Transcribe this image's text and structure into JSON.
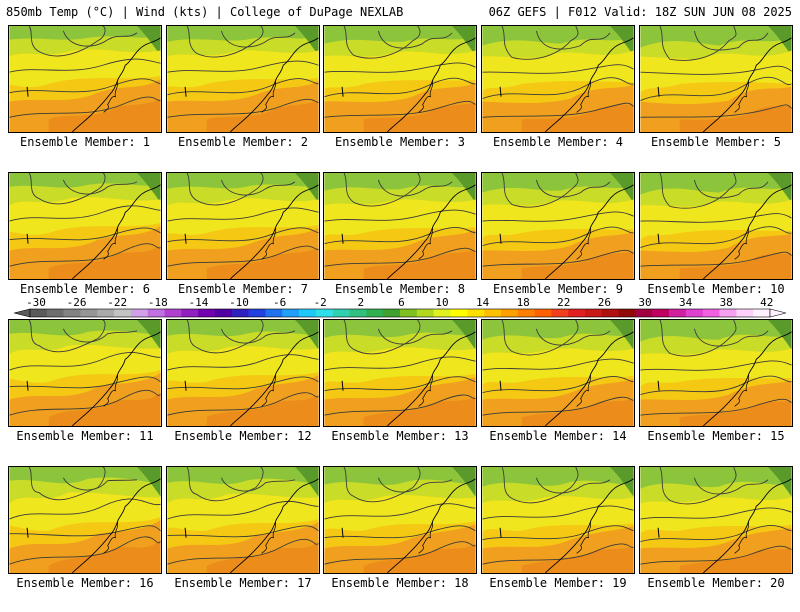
{
  "header": {
    "left_title": "850mb Temp (°C) | Wind (kts) | College of DuPage NEXLAB",
    "right_title": "06Z GEFS | F012 Valid: 18Z SUN JUN 08 2025"
  },
  "panel_label_prefix": "Ensemble Member:",
  "members": [
    1,
    2,
    3,
    4,
    5,
    6,
    7,
    8,
    9,
    10,
    11,
    12,
    13,
    14,
    15,
    16,
    17,
    18,
    19,
    20
  ],
  "panel_labels": [
    "Ensemble Member: 1",
    "Ensemble Member: 2",
    "Ensemble Member: 3",
    "Ensemble Member: 4",
    "Ensemble Member: 5",
    "Ensemble Member: 6",
    "Ensemble Member: 7",
    "Ensemble Member: 8",
    "Ensemble Member: 9",
    "Ensemble Member: 10",
    "Ensemble Member: 11",
    "Ensemble Member: 12",
    "Ensemble Member: 13",
    "Ensemble Member: 14",
    "Ensemble Member: 15",
    "Ensemble Member: 16",
    "Ensemble Member: 17",
    "Ensemble Member: 18",
    "Ensemble Member: 19",
    "Ensemble Member: 20"
  ],
  "colorbar": {
    "tick_labels": [
      "-30",
      "-26",
      "-22",
      "-18",
      "-14",
      "-10",
      "-6",
      "-2",
      "2",
      "6",
      "10",
      "14",
      "18",
      "22",
      "26",
      "30",
      "34",
      "38",
      "42"
    ],
    "colors": [
      "#5a5a5a",
      "#6e6e6e",
      "#828282",
      "#969696",
      "#aaaaaa",
      "#c3c3c3",
      "#d0a0e8",
      "#c070e0",
      "#b040d0",
      "#9020c0",
      "#7000b0",
      "#5000a0",
      "#3020c0",
      "#2040e0",
      "#2070f0",
      "#20a0f8",
      "#20c8f8",
      "#30e0e8",
      "#30d0b0",
      "#30c080",
      "#30b050",
      "#40a030",
      "#80c020",
      "#b0d820",
      "#e0f020",
      "#ffff00",
      "#ffe000",
      "#ffc000",
      "#ffa000",
      "#ff8000",
      "#ff6000",
      "#f04020",
      "#e02020",
      "#c81818",
      "#b01010",
      "#900808",
      "#a00040",
      "#c00060",
      "#d020a0",
      "#e040d0",
      "#f060e0",
      "#f8a0f0",
      "#fcd0f8",
      "#fff0ff"
    ]
  },
  "map_colors": {
    "green": "#8cc43c",
    "yellow_green": "#c8dc28",
    "yellow": "#f0e61e",
    "orange_yellow": "#f5c814",
    "orange": "#f0a01e",
    "dark_orange": "#ec8c1a",
    "contour": "#3a3a3a"
  }
}
